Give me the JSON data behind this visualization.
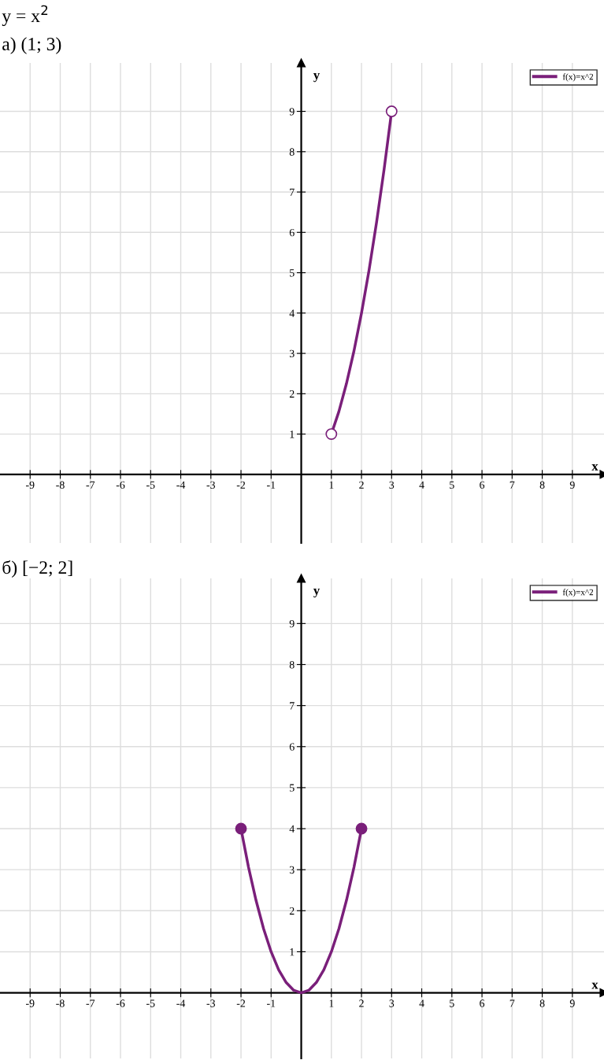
{
  "chart_data": [
    {
      "type": "line",
      "title": "y = x$^{2}$",
      "subtitle": "а) (1; 3)",
      "xlabel": "x",
      "ylabel": "y",
      "xlim": [
        -10,
        10.05
      ],
      "ylim": [
        -1.7,
        10.2
      ],
      "xticks": [
        -9,
        -8,
        -7,
        -6,
        -5,
        -4,
        -3,
        -2,
        -1,
        1,
        2,
        3,
        4,
        5,
        6,
        7,
        8,
        9
      ],
      "yticks": [
        1,
        2,
        3,
        4,
        5,
        6,
        7,
        8,
        9
      ],
      "grid": true,
      "legend": "top right",
      "series": [
        {
          "name": "f(x)=x^2",
          "color": "#7a1f7a",
          "x": [
            1,
            1.25,
            1.5,
            1.75,
            2,
            2.25,
            2.5,
            2.75,
            3
          ],
          "values": [
            1,
            1.56,
            2.25,
            3.06,
            4,
            5.06,
            6.25,
            7.56,
            9
          ]
        },
        {
          "type": "scatter",
          "color": "#ffffff",
          "x": [
            1,
            3
          ],
          "values": [
            1,
            9
          ]
        }
      ]
    },
    {
      "type": "line",
      "title": "б) [−2; 2]",
      "xlabel": "x",
      "ylabel": "y",
      "xlim": [
        -10,
        10.05
      ],
      "ylim": [
        -1.6,
        10.1
      ],
      "xticks": [
        -9,
        -8,
        -7,
        -6,
        -5,
        -4,
        -3,
        -2,
        -1,
        1,
        2,
        3,
        4,
        5,
        6,
        7,
        8,
        9
      ],
      "yticks": [
        1,
        2,
        3,
        4,
        5,
        6,
        7,
        8,
        9
      ],
      "grid": true,
      "legend": "top right",
      "series": [
        {
          "name": "f(x)=x^2",
          "color": "#7a1f7a",
          "x": [
            -2,
            -1.75,
            -1.5,
            -1.25,
            -1,
            -0.75,
            -0.5,
            -0.25,
            0,
            0.25,
            0.5,
            0.75,
            1,
            1.25,
            1.5,
            1.75,
            2
          ],
          "values": [
            4,
            3.06,
            2.25,
            1.56,
            1,
            0.56,
            0.25,
            0.06,
            0,
            0.06,
            0.25,
            0.56,
            1,
            1.56,
            2.25,
            3.06,
            4
          ]
        },
        {
          "type": "scatter",
          "color": "#7a1f7a",
          "x": [
            -2,
            2
          ],
          "values": [
            4,
            4
          ]
        }
      ]
    }
  ]
}
